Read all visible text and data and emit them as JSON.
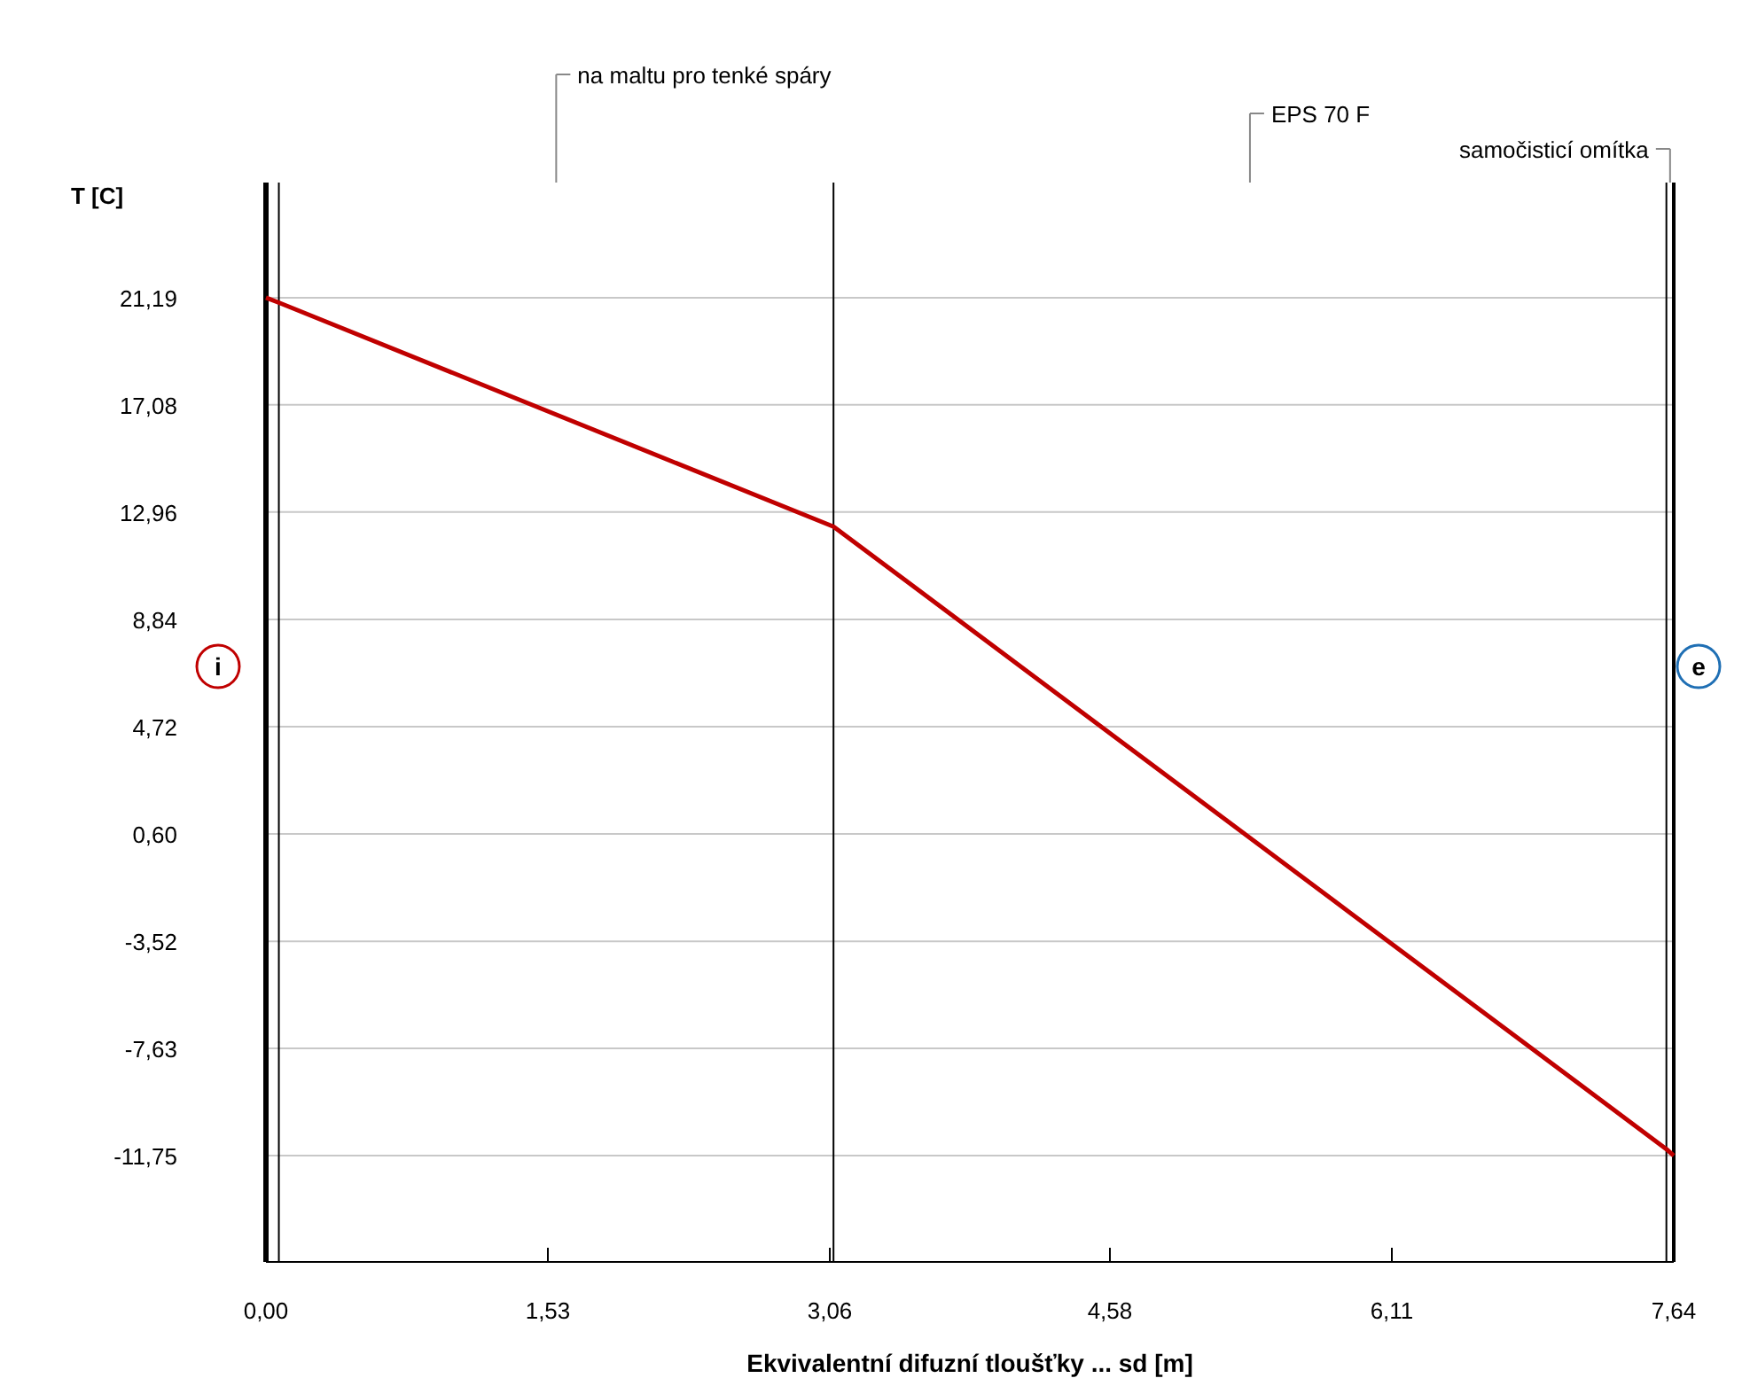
{
  "chart_data": {
    "type": "line",
    "ylabel": "T [C]",
    "xlabel": "Ekvivalentní difuzní tloušťky ... sd [m]",
    "x": [
      0,
      0.07,
      3.08,
      7.6,
      7.64
    ],
    "series": [
      {
        "color": "#c00000",
        "values": [
          21.19,
          21.0,
          12.4,
          -11.5,
          -11.75
        ]
      }
    ],
    "xlim": [
      0,
      7.64
    ],
    "ylim": [
      -15.83,
      25.61
    ],
    "xticks": [
      {
        "value": 0,
        "label": "0,00"
      },
      {
        "value": 1.53,
        "label": "1,53"
      },
      {
        "value": 3.06,
        "label": "3,06"
      },
      {
        "value": 4.58,
        "label": "4,58"
      },
      {
        "value": 6.11,
        "label": "6,11"
      },
      {
        "value": 7.64,
        "label": "7,64"
      }
    ],
    "yticks": [
      {
        "value": 21.19,
        "label": "21,19"
      },
      {
        "value": 17.08,
        "label": "17,08"
      },
      {
        "value": 12.96,
        "label": "12,96"
      },
      {
        "value": 8.84,
        "label": "8,84"
      },
      {
        "value": 4.72,
        "label": "4,72"
      },
      {
        "value": 0.6,
        "label": "0,60"
      },
      {
        "value": -3.52,
        "label": "-3,52"
      },
      {
        "value": -7.63,
        "label": "-7,63"
      },
      {
        "value": -11.75,
        "label": "-11,75"
      }
    ],
    "grid": "y",
    "marker": "none",
    "line_style": "solid",
    "ref_lines": [
      {
        "axis": "x",
        "value": 0.07,
        "color": "#000000"
      },
      {
        "axis": "x",
        "value": 3.08,
        "color": "#000000"
      },
      {
        "axis": "x",
        "value": 7.6,
        "color": "#000000"
      }
    ],
    "annotations": [
      "na maltu pro tenké spáry",
      "EPS 70 F",
      "samočisticí omítka",
      "i",
      "e"
    ]
  }
}
